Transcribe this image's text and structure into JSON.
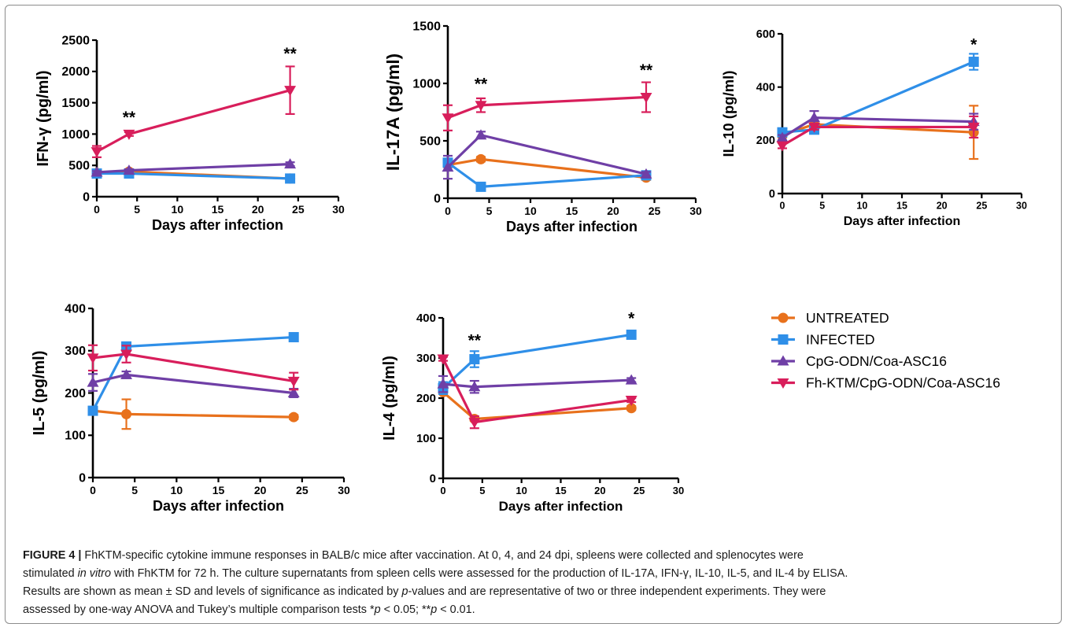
{
  "colors": {
    "UNTREATED": "#e8711c",
    "INFECTED": "#2f8fe8",
    "CpG-ODN/Coa-ASC16": "#6f3fa6",
    "Fh-KTM/CpG-ODN/Coa-ASC16": "#d81e5b"
  },
  "legend": {
    "placement": "right of lower row",
    "items": [
      {
        "label": "UNTREATED",
        "marker": "circle"
      },
      {
        "label": "INFECTED",
        "marker": "square"
      },
      {
        "label": "CpG-ODN/Coa-ASC16",
        "marker": "triangle-up"
      },
      {
        "label": "Fh-KTM/CpG-ODN/Coa-ASC16",
        "marker": "triangle-down"
      }
    ]
  },
  "chart_data": [
    {
      "type": "line",
      "xlabel": "Days after infection",
      "ylabel": "IFN-γ (pg/ml)",
      "xlim": [
        0,
        30
      ],
      "ylim": [
        0,
        2500
      ],
      "xticks": [
        0,
        5,
        10,
        15,
        20,
        25,
        30
      ],
      "yticks": [
        0,
        500,
        1000,
        1500,
        2000,
        2500
      ],
      "x": [
        0,
        4,
        24
      ],
      "series": [
        {
          "name": "UNTREATED",
          "values": [
            380,
            400,
            290
          ],
          "err": [
            20,
            20,
            20
          ]
        },
        {
          "name": "INFECTED",
          "values": [
            370,
            370,
            290
          ],
          "err": [
            20,
            20,
            30
          ]
        },
        {
          "name": "CpG-ODN/Coa-ASC16",
          "values": [
            390,
            420,
            520
          ],
          "err": [
            20,
            20,
            30
          ]
        },
        {
          "name": "Fh-KTM/CpG-ODN/Coa-ASC16",
          "values": [
            720,
            1000,
            1700
          ],
          "err": [
            90,
            30,
            380
          ]
        }
      ],
      "annotations": [
        {
          "x": 4,
          "y": 1180,
          "text": "**"
        },
        {
          "x": 24,
          "y": 2200,
          "text": "**"
        }
      ]
    },
    {
      "type": "line",
      "xlabel": "Days after infection",
      "ylabel": "IL-17A (pg/ml)",
      "xlim": [
        0,
        30
      ],
      "ylim": [
        0,
        1500
      ],
      "xticks": [
        0,
        5,
        10,
        15,
        20,
        25,
        30
      ],
      "yticks": [
        0,
        500,
        1000,
        1500
      ],
      "x": [
        0,
        4,
        24
      ],
      "series": [
        {
          "name": "UNTREATED",
          "values": [
            290,
            340,
            180
          ],
          "err": [
            20,
            20,
            20
          ]
        },
        {
          "name": "INFECTED",
          "values": [
            310,
            100,
            200
          ],
          "err": [
            20,
            15,
            20
          ]
        },
        {
          "name": "CpG-ODN/Coa-ASC16",
          "values": [
            270,
            550,
            210
          ],
          "err": [
            100,
            30,
            20
          ]
        },
        {
          "name": "Fh-KTM/CpG-ODN/Coa-ASC16",
          "values": [
            700,
            810,
            880
          ],
          "err": [
            110,
            60,
            130
          ]
        }
      ],
      "annotations": [
        {
          "x": 4,
          "y": 950,
          "text": "**"
        },
        {
          "x": 24,
          "y": 1070,
          "text": "**"
        }
      ]
    },
    {
      "type": "line",
      "xlabel": "Days after infection",
      "ylabel": "IL-10 (pg/ml)",
      "xlim": [
        0,
        30
      ],
      "ylim": [
        0,
        600
      ],
      "xticks": [
        0,
        5,
        10,
        15,
        20,
        25,
        30
      ],
      "yticks": [
        0,
        200,
        400,
        600
      ],
      "x": [
        0,
        4,
        24
      ],
      "series": [
        {
          "name": "UNTREATED",
          "values": [
            220,
            260,
            230
          ],
          "err": [
            10,
            10,
            100
          ]
        },
        {
          "name": "INFECTED",
          "values": [
            230,
            240,
            495
          ],
          "err": [
            10,
            10,
            30
          ]
        },
        {
          "name": "CpG-ODN/Coa-ASC16",
          "values": [
            210,
            285,
            270
          ],
          "err": [
            10,
            25,
            30
          ]
        },
        {
          "name": "Fh-KTM/CpG-ODN/Coa-ASC16",
          "values": [
            180,
            250,
            250
          ],
          "err": [
            10,
            10,
            40
          ]
        }
      ],
      "annotations": [
        {
          "x": 24,
          "y": 540,
          "text": "*"
        }
      ]
    },
    {
      "type": "line",
      "xlabel": "Days after infection",
      "ylabel": "IL-5 (pg/ml)",
      "xlim": [
        0,
        30
      ],
      "ylim": [
        0,
        400
      ],
      "xticks": [
        0,
        5,
        10,
        15,
        20,
        25,
        30
      ],
      "yticks": [
        0,
        100,
        200,
        300,
        400
      ],
      "x": [
        0,
        4,
        24
      ],
      "series": [
        {
          "name": "UNTREATED",
          "values": [
            158,
            150,
            143
          ],
          "err": [
            5,
            35,
            5
          ]
        },
        {
          "name": "INFECTED",
          "values": [
            158,
            310,
            332
          ],
          "err": [
            5,
            8,
            5
          ]
        },
        {
          "name": "CpG-ODN/Coa-ASC16",
          "values": [
            225,
            243,
            200
          ],
          "err": [
            20,
            8,
            10
          ]
        },
        {
          "name": "Fh-KTM/CpG-ODN/Coa-ASC16",
          "values": [
            283,
            292,
            228
          ],
          "err": [
            30,
            20,
            20
          ]
        }
      ],
      "annotations": []
    },
    {
      "type": "line",
      "xlabel": "Days after infection",
      "ylabel": "IL-4 (pg/ml)",
      "xlim": [
        0,
        30
      ],
      "ylim": [
        0,
        400
      ],
      "xticks": [
        0,
        5,
        10,
        15,
        20,
        25,
        30
      ],
      "yticks": [
        0,
        100,
        200,
        300,
        400
      ],
      "x": [
        0,
        4,
        24
      ],
      "series": [
        {
          "name": "UNTREATED",
          "values": [
            215,
            148,
            175
          ],
          "err": [
            5,
            5,
            5
          ]
        },
        {
          "name": "INFECTED",
          "values": [
            225,
            297,
            358
          ],
          "err": [
            15,
            20,
            5
          ]
        },
        {
          "name": "CpG-ODN/Coa-ASC16",
          "values": [
            235,
            228,
            245
          ],
          "err": [
            20,
            15,
            5
          ]
        },
        {
          "name": "Fh-KTM/CpG-ODN/Coa-ASC16",
          "values": [
            298,
            140,
            195
          ],
          "err": [
            5,
            15,
            5
          ]
        }
      ],
      "annotations": [
        {
          "x": 4,
          "y": 330,
          "text": "**"
        },
        {
          "x": 24,
          "y": 385,
          "text": "*"
        }
      ]
    }
  ],
  "caption": {
    "label": "FIGURE 4 |",
    "line1": "FhKTM-specific cytokine immune responses in BALB/c mice after vaccination. At 0, 4, and 24 dpi, spleens were collected and splenocytes were",
    "line2_a": "stimulated",
    "line2_i": "in vitro",
    "line2_b": "with FhKTM for 72 h. The culture supernatants from spleen cells were assessed for the production of IL-17A, IFN-γ, IL-10, IL-5, and IL-4 by ELISA.",
    "line3_a": "Results are shown as mean ± SD and levels of significance as indicated by",
    "line3_i": "p",
    "line3_b": "-values and are representative of two or three independent experiments. They were",
    "line4_a": "assessed by one-way ANOVA and Tukey’s multiple comparison tests *",
    "line4_i1": "p",
    "line4_b": " < 0.05; **",
    "line4_i2": "p",
    "line4_c": " < 0.01."
  }
}
